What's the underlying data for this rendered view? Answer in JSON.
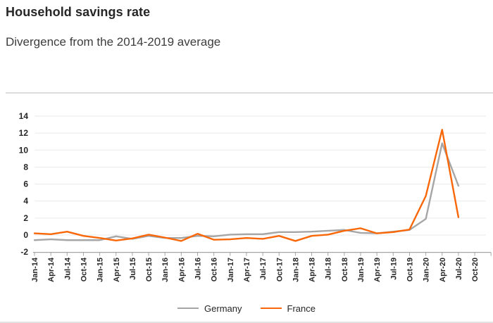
{
  "header": {
    "title": "Household savings rate",
    "subtitle": "Divergence from the 2014-2019 average"
  },
  "chart_data": {
    "type": "line",
    "title": "Household savings rate",
    "subtitle": "Divergence from the 2014-2019 average",
    "categories": [
      "Jan-14",
      "Apr-14",
      "Jul-14",
      "Oct-14",
      "Jan-15",
      "Apr-15",
      "Jul-15",
      "Oct-15",
      "Jan-16",
      "Apr-16",
      "Jul-16",
      "Oct-16",
      "Jan-17",
      "Apr-17",
      "Jul-17",
      "Oct-17",
      "Jan-18",
      "Apr-18",
      "Jul-18",
      "Oct-18",
      "Jan-19",
      "Apr-19",
      "Jul-19",
      "Oct-19",
      "Jan-20",
      "Apr-20",
      "Jul-20",
      "Oct-20"
    ],
    "series": [
      {
        "name": "Germany",
        "color": "#A6A6A6",
        "values": [
          -0.6,
          -0.5,
          -0.6,
          -0.6,
          -0.6,
          -0.15,
          -0.45,
          -0.1,
          -0.35,
          -0.35,
          -0.1,
          -0.15,
          0.05,
          0.1,
          0.1,
          0.35,
          0.35,
          0.4,
          0.5,
          0.6,
          0.25,
          0.2,
          0.4,
          0.6,
          1.9,
          10.8,
          5.8,
          null
        ]
      },
      {
        "name": "France",
        "color": "#F96708",
        "values": [
          0.2,
          0.1,
          0.4,
          -0.1,
          -0.35,
          -0.65,
          -0.4,
          0.05,
          -0.3,
          -0.7,
          0.15,
          -0.55,
          -0.5,
          -0.35,
          -0.45,
          -0.1,
          -0.7,
          -0.1,
          0.05,
          0.5,
          0.8,
          0.2,
          0.35,
          0.65,
          4.6,
          12.4,
          2.1,
          null
        ]
      }
    ],
    "xlabel": "",
    "ylabel": "",
    "ylim": [
      -2,
      14
    ],
    "yticks": [
      -2,
      0,
      2,
      4,
      6,
      8,
      10,
      12,
      14
    ],
    "grid": "horizontal",
    "legend_position": "bottom"
  },
  "colors": {
    "title": "#262626",
    "subtitle": "#3d3d3d",
    "gridline": "#EAEAEA",
    "axis": "#A6A6A6",
    "tick_label": "#262626",
    "divider": "#DCDCDC",
    "germany": "#A6A6A6",
    "france": "#F96708"
  }
}
